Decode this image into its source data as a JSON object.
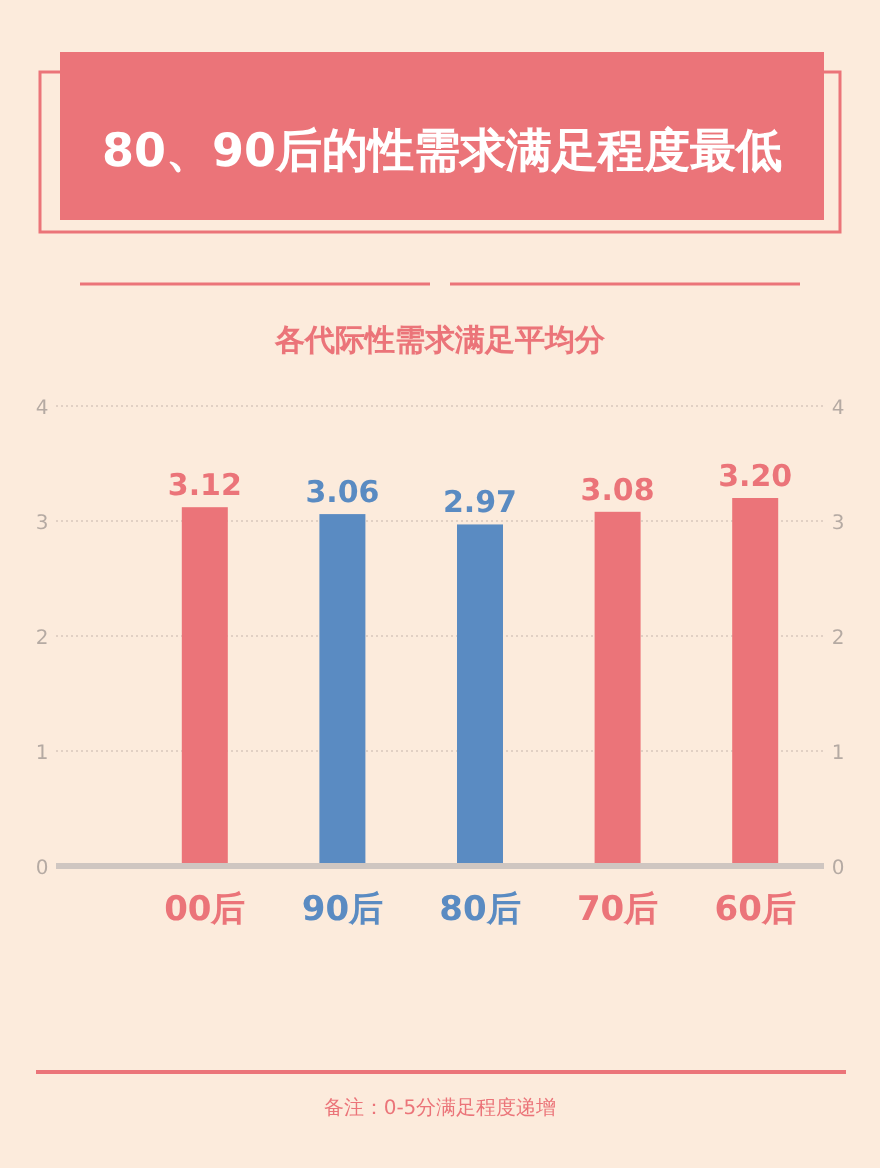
{
  "chart_data": {
    "type": "bar",
    "title": "80、90后的性需求满足程度最低",
    "subtitle": "各代际性需求满足平均分",
    "categories": [
      "00后",
      "90后",
      "80后",
      "70后",
      "60后"
    ],
    "values": [
      3.12,
      3.06,
      2.97,
      3.08,
      3.2
    ],
    "colors": [
      "#eb7479",
      "#5a8bc2",
      "#5a8bc2",
      "#eb7479",
      "#eb7479"
    ],
    "value_labels": [
      "3.12",
      "3.06",
      "2.97",
      "3.08",
      "3.20"
    ],
    "ylim": [
      0,
      4
    ],
    "yticks": [
      0,
      1,
      2,
      3,
      4
    ],
    "y2lim": [
      0,
      4
    ],
    "y2ticks": [
      0,
      1,
      2,
      3,
      4
    ],
    "grid": "y",
    "annotations": [
      "备注：0-5分满足程度递增"
    ]
  }
}
